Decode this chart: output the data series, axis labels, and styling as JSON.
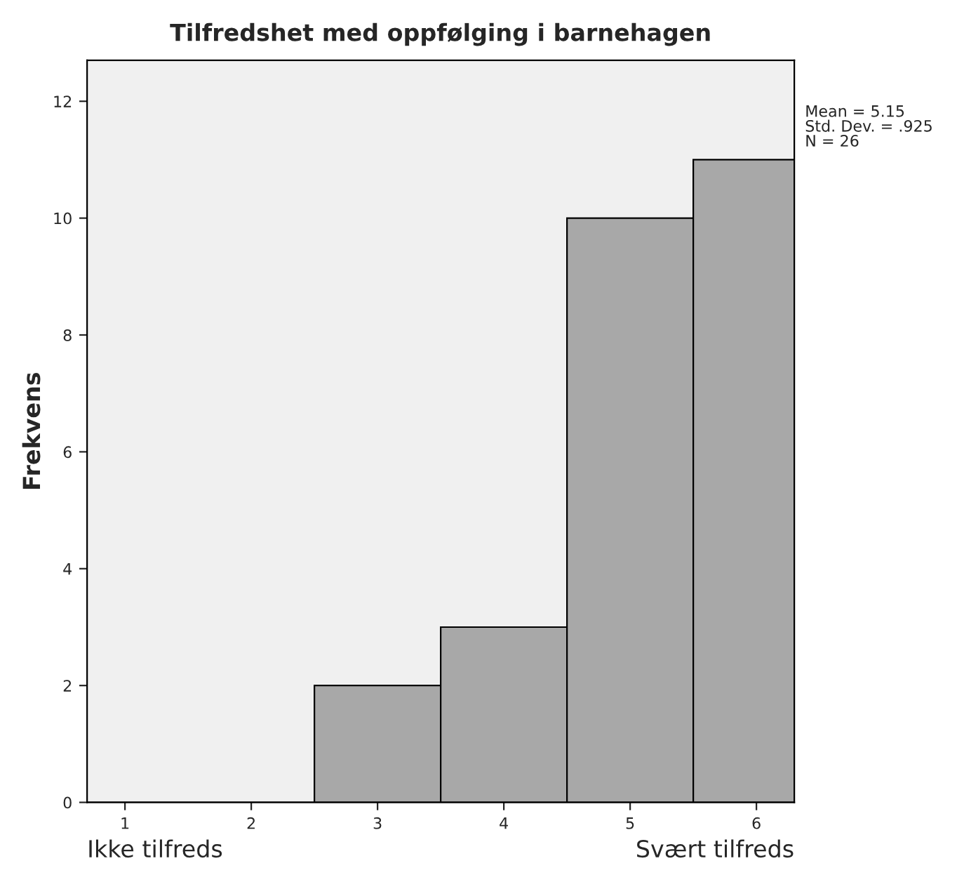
{
  "chart_data": {
    "type": "histogram",
    "title": "Tilfredshet med oppfølging i barnehagen",
    "ylabel": "Frekvens",
    "bins": [
      0.5,
      1.5,
      2.5,
      3.5,
      4.5,
      5.5,
      6.5
    ],
    "values": [
      0,
      0,
      2,
      3,
      10,
      11
    ],
    "color": "#a8a8a8",
    "xlim": [
      0.7,
      6.3
    ],
    "xticks": [
      1,
      2,
      3,
      4,
      5,
      6
    ],
    "ylim": [
      0,
      12.7
    ],
    "yticks": [
      0,
      2,
      4,
      6,
      8,
      10,
      12
    ],
    "grid": false,
    "legend": false,
    "annotations": [
      "Ikke tilfreds",
      "Svært tilfreds",
      "Mean = 5.15",
      "Std. Dev. = .925",
      "N = 26"
    ]
  }
}
